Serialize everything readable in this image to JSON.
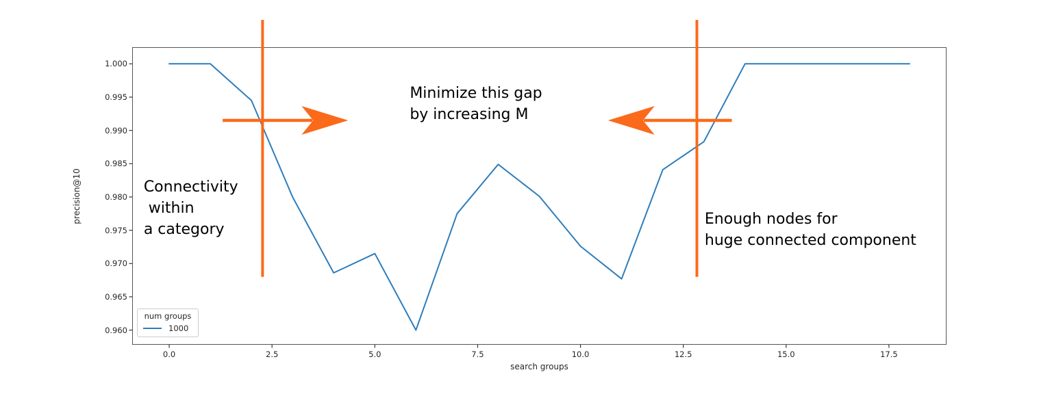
{
  "chart_data": {
    "type": "line",
    "title": "",
    "xlabel": "search groups",
    "ylabel": "precision@10",
    "xlim": [
      -0.9,
      18.9
    ],
    "ylim": [
      0.9578,
      1.0025
    ],
    "xticks": [
      0.0,
      2.5,
      5.0,
      7.5,
      10.0,
      12.5,
      15.0,
      17.5
    ],
    "yticks": [
      0.96,
      0.965,
      0.97,
      0.975,
      0.98,
      0.985,
      0.99,
      0.995,
      1.0
    ],
    "grid": false,
    "series": [
      {
        "name": "1000",
        "color": "#2d7dbb",
        "x": [
          0,
          1,
          2,
          3,
          4,
          5,
          6,
          7,
          8,
          9,
          10,
          11,
          12,
          13,
          14,
          15,
          16,
          17,
          18
        ],
        "y": [
          1.0,
          1.0,
          0.9945,
          0.98,
          0.9686,
          0.9715,
          0.96,
          0.9775,
          0.9849,
          0.9801,
          0.9726,
          0.9677,
          0.9841,
          0.9883,
          1.0,
          1.0,
          1.0,
          1.0,
          1.0
        ]
      }
    ],
    "legend": {
      "title": "num groups",
      "position": "lower left"
    },
    "annotations": {
      "color": "#fb6a1a",
      "vlines": [
        {
          "id": "vline-left",
          "x": 2.27,
          "y1": 0.968,
          "y2": 1.0066
        },
        {
          "id": "vline-right",
          "x": 12.83,
          "y1": 0.968,
          "y2": 1.0066
        }
      ],
      "arrows": [
        {
          "id": "arrow-right",
          "y": 0.9915,
          "x_tail": 1.3,
          "x_tip": 4.35,
          "direction": "right"
        },
        {
          "id": "arrow-left",
          "y": 0.9915,
          "x_tail": 13.68,
          "x_tip": 10.67,
          "direction": "left"
        }
      ],
      "texts": [
        {
          "id": "minimize-gap",
          "text": "Minimize this gap\nby increasing M",
          "x": 5.85,
          "y": 0.9972
        },
        {
          "id": "connectivity",
          "text": "Connectivity\n within\na category",
          "x": -0.62,
          "y": 0.9831
        },
        {
          "id": "enough-nodes",
          "text": "Enough nodes for\nhuge connected component",
          "x": 13.02,
          "y": 0.9783
        }
      ]
    }
  },
  "axes": {
    "xlabel": "search groups",
    "ylabel": "precision@10"
  },
  "legend": {
    "title": "num groups",
    "items": [
      {
        "label": "1000"
      }
    ]
  }
}
